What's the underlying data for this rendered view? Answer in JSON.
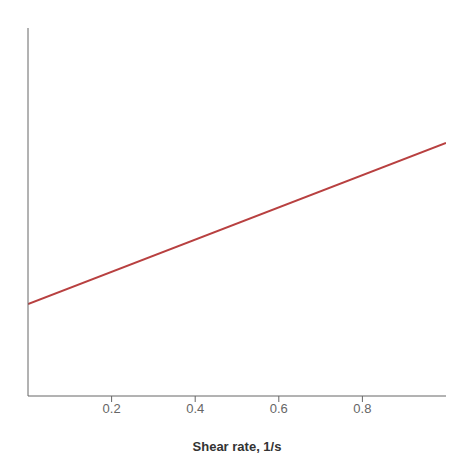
{
  "chart_data": {
    "type": "line",
    "x": [
      0.0,
      1.0
    ],
    "series": [
      {
        "values": [
          2.0,
          5.5
        ],
        "color": "#b84040"
      }
    ],
    "xlabel": "Shear rate, 1/s",
    "xlim": [
      0.0,
      1.0
    ],
    "ylim": [
      0.0,
      8.0
    ],
    "xticks": [
      0.2,
      0.4,
      0.6,
      0.8
    ],
    "tick_labels": "x",
    "grid": false
  }
}
